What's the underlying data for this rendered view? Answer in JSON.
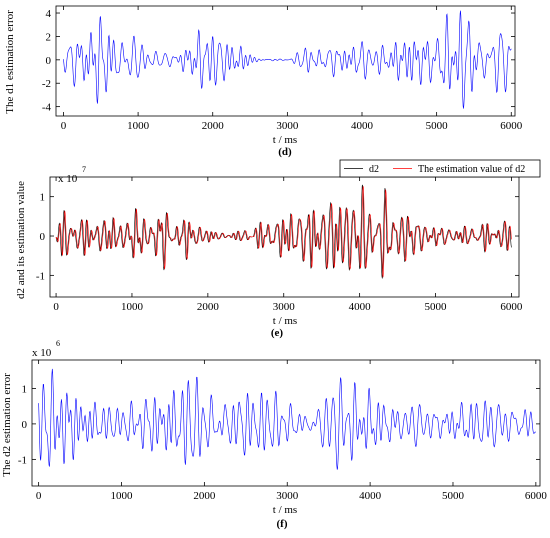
{
  "chart_data": [
    {
      "type": "line",
      "caption": "(d)",
      "xlabel": "t / ms",
      "ylabel": "The d1 estimation error",
      "xlim": [
        -100,
        6050
      ],
      "ylim": [
        -4.8,
        4.6
      ],
      "xticks": [
        0,
        1000,
        2000,
        3000,
        4000,
        5000,
        6000
      ],
      "xtick_labels": [
        "0",
        "1000",
        "2000",
        "3000",
        "4000",
        "5000",
        "6000"
      ],
      "yticks": [
        -4,
        -2,
        0,
        2,
        4
      ],
      "ytick_labels": [
        "-4",
        "-2",
        "0",
        "2",
        "4"
      ],
      "series": [
        {
          "color": "#0000ff",
          "amplitude": 4.2,
          "seed": 11,
          "variant": "main",
          "values_note": "dense oscillation between about -4.6 and 4.5"
        }
      ],
      "grid": false
    },
    {
      "type": "line",
      "caption": "(e)",
      "xlabel": "t / ms",
      "ylabel": "d2 and its estimation value",
      "exponent_label": "x 10",
      "exponent": "7",
      "xlim": [
        -80,
        6100
      ],
      "ylim": [
        -1.55,
        1.5
      ],
      "xticks": [
        0,
        1000,
        2000,
        3000,
        4000,
        5000,
        6000
      ],
      "xtick_labels": [
        "0",
        "1000",
        "2000",
        "3000",
        "4000",
        "5000",
        "6000"
      ],
      "yticks": [
        -1,
        0,
        1
      ],
      "ytick_labels": [
        "-1",
        "0",
        "1"
      ],
      "legend": {
        "placement": "top-right",
        "entries": [
          "d2",
          "The estimation value of d2"
        ]
      },
      "series": [
        {
          "name": "d2",
          "color": "#000000",
          "amplitude": 1.3,
          "seed": 23,
          "variant": "main"
        },
        {
          "name": "The estimation value of d2",
          "color": "#ff0000",
          "amplitude": 1.3,
          "seed": 23,
          "variant": "lagged"
        }
      ],
      "grid": false
    },
    {
      "type": "line",
      "caption": "(f)",
      "xlabel": "t / ms",
      "ylabel": "The d2 estimation error",
      "exponent_label": "x 10",
      "exponent": "6",
      "xlim": [
        -80,
        6050
      ],
      "ylim": [
        -1.75,
        1.8
      ],
      "xticks": [
        0,
        1000,
        2000,
        3000,
        4000,
        5000,
        6000
      ],
      "xtick_labels": [
        "0",
        "1000",
        "2000",
        "3000",
        "4000",
        "5000",
        "6000"
      ],
      "yticks": [
        -1,
        0,
        1
      ],
      "ytick_labels": [
        "-1",
        "0",
        "1"
      ],
      "series": [
        {
          "color": "#0000ff",
          "amplitude": 1.55,
          "seed": 37,
          "variant": "main"
        }
      ],
      "grid": false
    }
  ]
}
